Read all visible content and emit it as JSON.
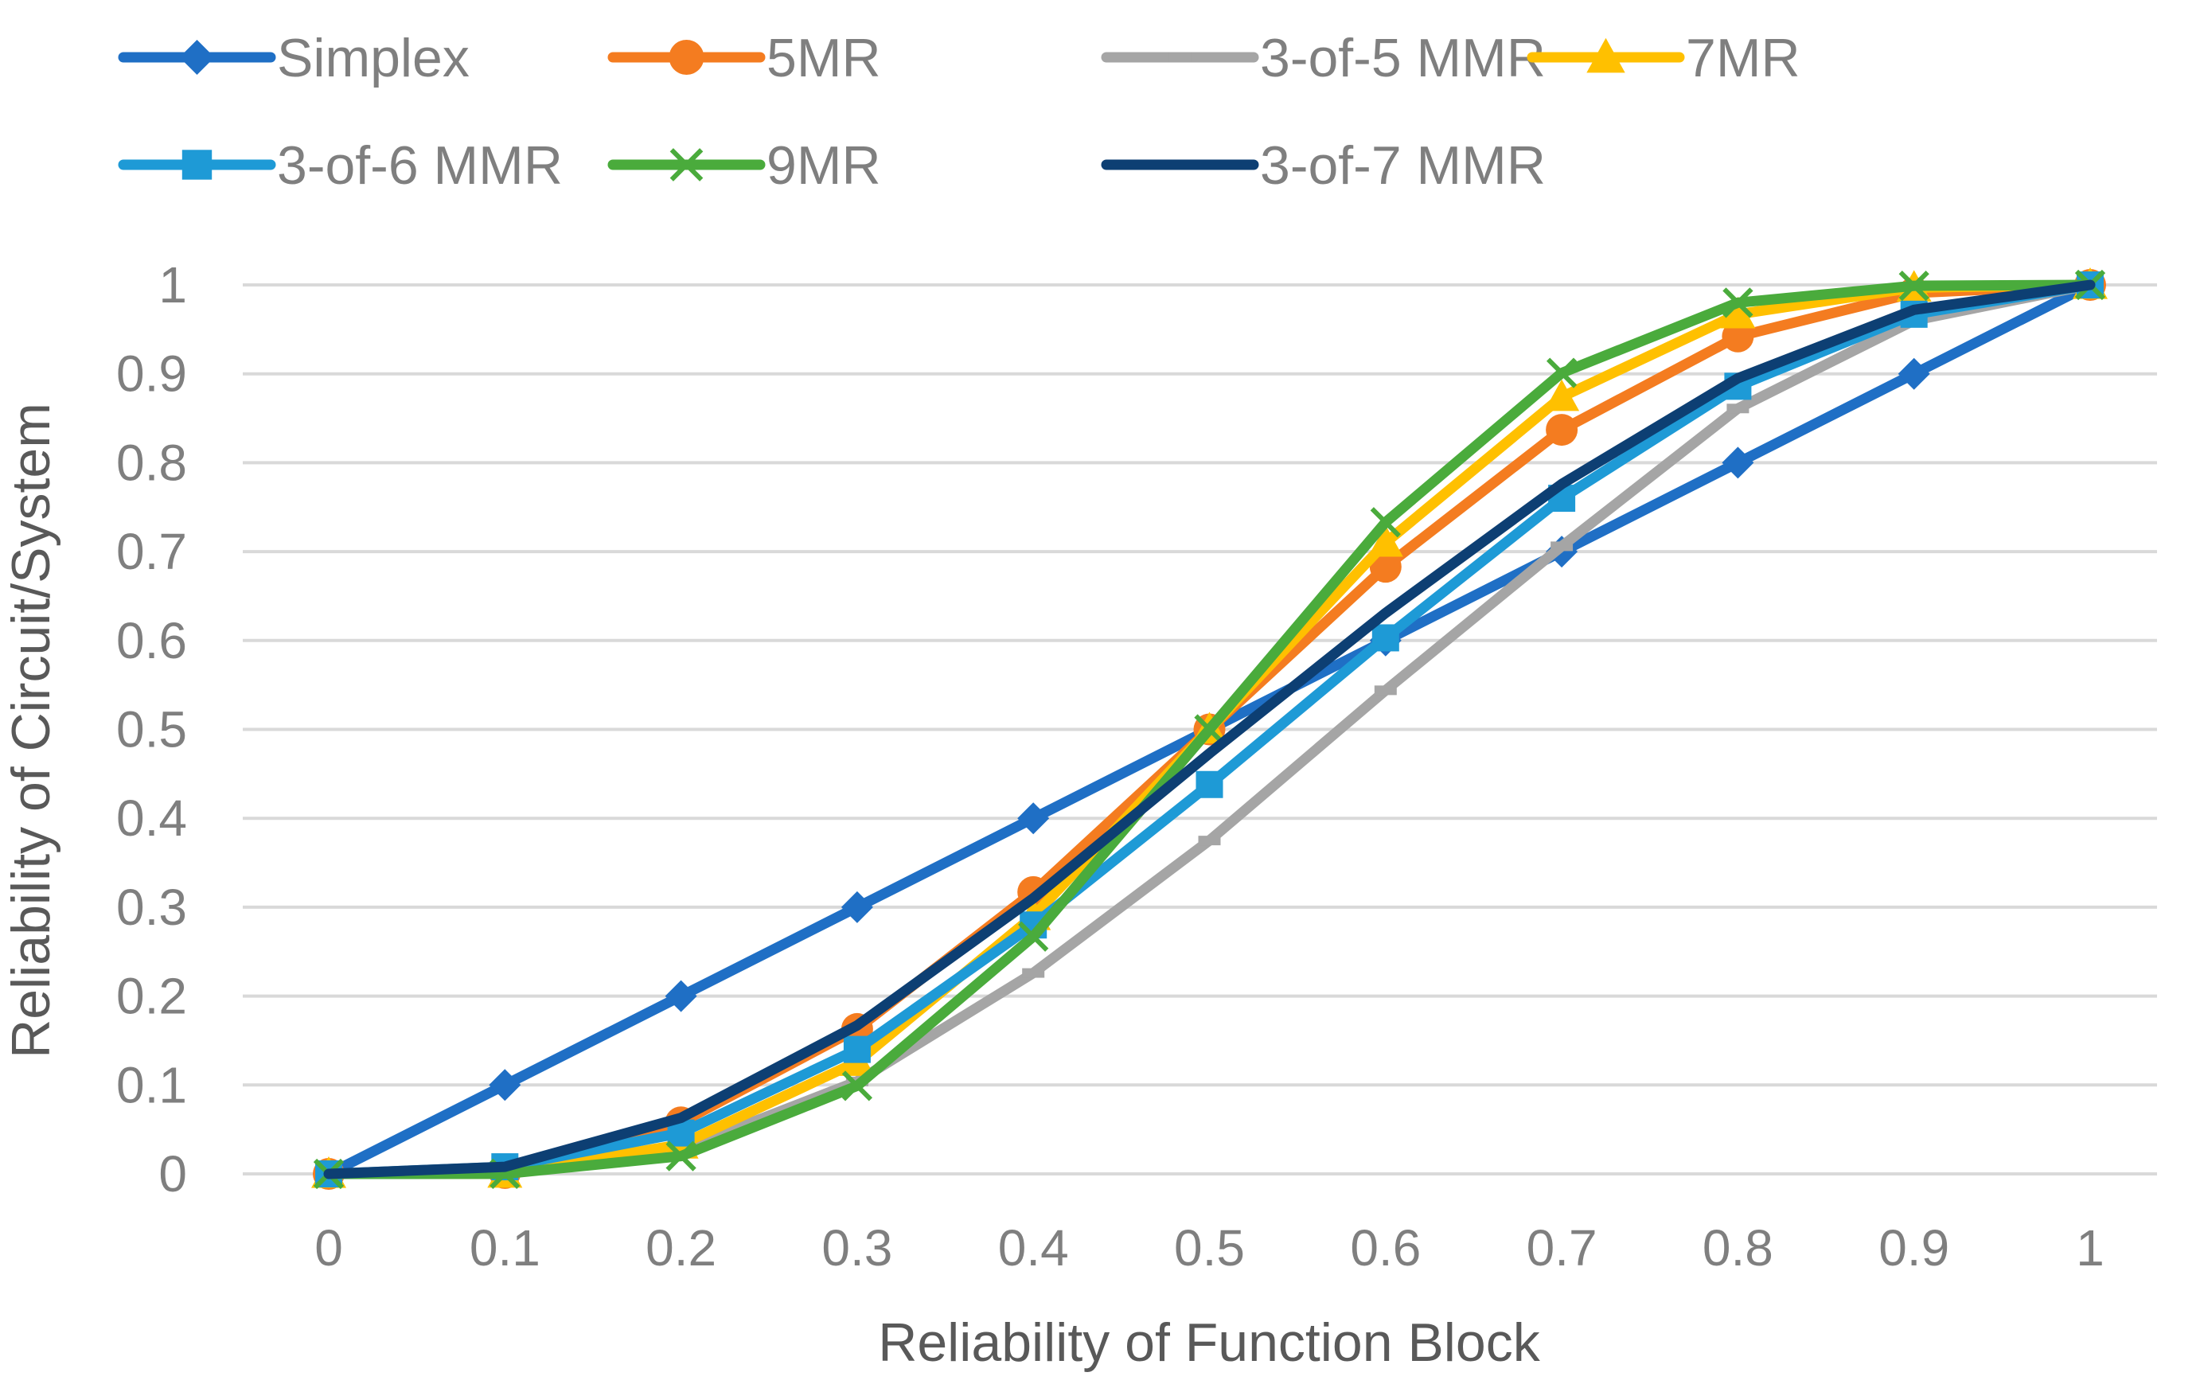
{
  "chart_data": {
    "type": "line",
    "title": "",
    "xlabel": "Reliability of Function Block",
    "ylabel": "Reliability of Circuit/System",
    "x": [
      0,
      0.1,
      0.2,
      0.3,
      0.4,
      0.5,
      0.6,
      0.7,
      0.8,
      0.9,
      1
    ],
    "x_tick_labels": [
      "0",
      "0.1",
      "0.2",
      "0.3",
      "0.4",
      "0.5",
      "0.6",
      "0.7",
      "0.8",
      "0.9",
      "1"
    ],
    "y_tick_labels": [
      "0",
      "0.1",
      "0.2",
      "0.3",
      "0.4",
      "0.5",
      "0.6",
      "0.7",
      "0.8",
      "0.9",
      "1"
    ],
    "ylim": [
      0,
      1
    ],
    "grid": "horizontal",
    "legend_position": "top",
    "series": [
      {
        "name": "Simplex",
        "color": "#1f6fc5",
        "marker": "diamond",
        "values": [
          0,
          0.1,
          0.2,
          0.3,
          0.4,
          0.5,
          0.6,
          0.7,
          0.8,
          0.9,
          1
        ]
      },
      {
        "name": "5MR",
        "color": "#f47c20",
        "marker": "circle",
        "values": [
          0,
          0.001,
          0.058,
          0.163,
          0.317,
          0.5,
          0.683,
          0.837,
          0.942,
          0.991,
          1
        ]
      },
      {
        "name": "3-of-5 MMR",
        "color": "#a5a5a5",
        "marker": "dash",
        "values": [
          0,
          0.001,
          0.027,
          0.104,
          0.226,
          0.375,
          0.544,
          0.706,
          0.861,
          0.96,
          1
        ]
      },
      {
        "name": "7MR",
        "color": "#ffc000",
        "marker": "triangle",
        "values": [
          0,
          0.0002,
          0.033,
          0.126,
          0.29,
          0.5,
          0.71,
          0.874,
          0.967,
          0.997,
          1
        ]
      },
      {
        "name": "3-of-6 MMR",
        "color": "#1e9ad6",
        "marker": "square",
        "values": [
          0,
          0.008,
          0.046,
          0.14,
          0.28,
          0.438,
          0.603,
          0.76,
          0.886,
          0.967,
          1
        ]
      },
      {
        "name": "9MR",
        "color": "#4aab3c",
        "marker": "x",
        "values": [
          0,
          0.0001,
          0.02,
          0.099,
          0.267,
          0.5,
          0.733,
          0.901,
          0.98,
          0.999,
          1
        ]
      },
      {
        "name": "3-of-7 MMR",
        "color": "#0d3f73",
        "marker": "none",
        "values": [
          0,
          0.008,
          0.063,
          0.167,
          0.31,
          0.473,
          0.631,
          0.776,
          0.895,
          0.972,
          1
        ]
      }
    ]
  }
}
